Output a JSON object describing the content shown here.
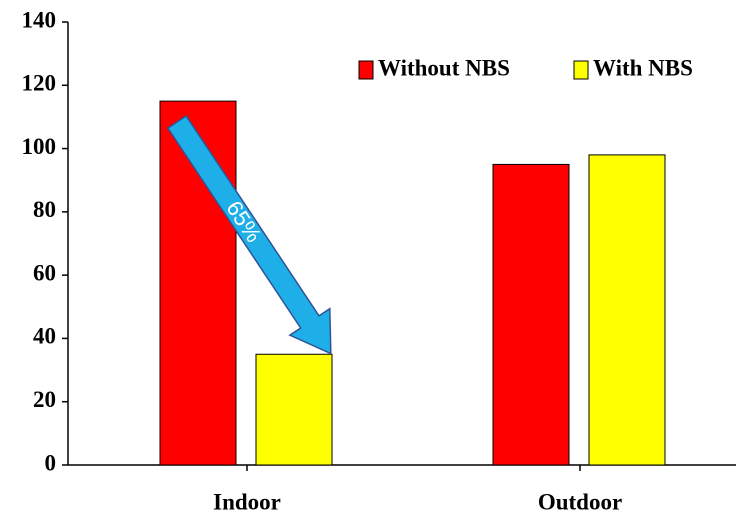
{
  "chart_data": {
    "type": "bar",
    "categories": [
      "Indoor",
      "Outdoor"
    ],
    "series": [
      {
        "name": "Without NBS",
        "color": "#ff0000",
        "values": [
          115,
          95
        ]
      },
      {
        "name": "With NBS",
        "color": "#ffff00",
        "values": [
          35,
          98
        ]
      }
    ],
    "ylim": [
      0,
      140
    ],
    "yticks": [
      0,
      20,
      40,
      60,
      80,
      100,
      120,
      140
    ],
    "legend": "top-right",
    "annotations": [
      {
        "text": "65%",
        "color": "#1eaee8"
      }
    ]
  }
}
